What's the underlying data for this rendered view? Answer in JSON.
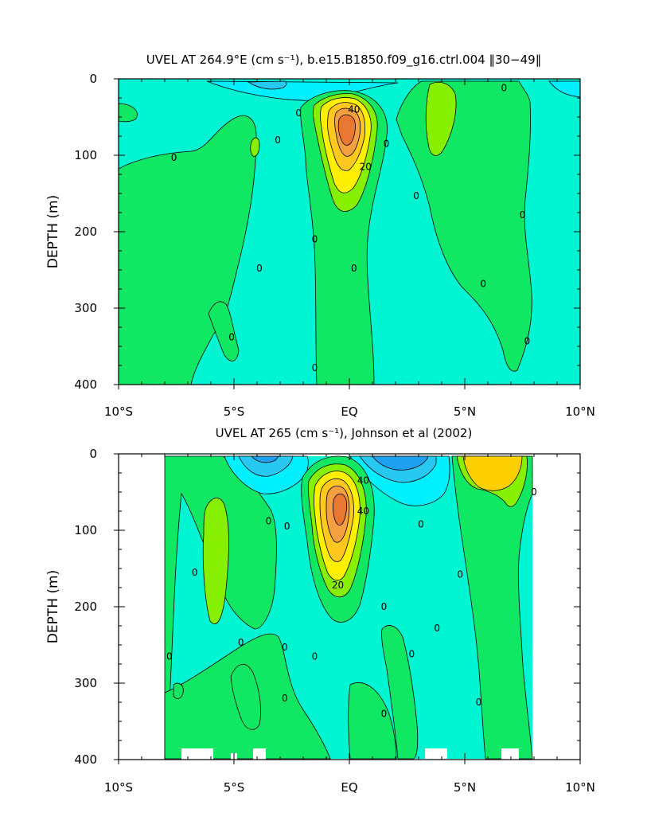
{
  "chart_data": [
    {
      "type": "contour",
      "title": "UVEL AT 264.9°E (cm s⁻¹), b.e15.B1850.f09_g16.ctrl.004 ‖30−49‖",
      "ylabel": "DEPTH (m)",
      "xlabel": "",
      "x_ticks": [
        "10°S",
        "5°S",
        "EQ",
        "5°N",
        "10°N"
      ],
      "x_tick_values": [
        -10,
        -5,
        0,
        5,
        10
      ],
      "y_ticks": [
        "0",
        "100",
        "200",
        "300",
        "400"
      ],
      "y_tick_values": [
        0,
        100,
        200,
        300,
        400
      ],
      "xlim": [
        -10,
        10
      ],
      "ylim": [
        400,
        0
      ],
      "y_reversed": true,
      "data_extent_x": [
        -10,
        10
      ],
      "contour_interval": 10,
      "contour_labels": [
        {
          "text": "40",
          "x": 0.2,
          "y": 40
        },
        {
          "text": "20",
          "x": 0.7,
          "y": 115
        },
        {
          "text": "0",
          "x": -7.6,
          "y": 103
        },
        {
          "text": "0",
          "x": -3.1,
          "y": 80
        },
        {
          "text": "0",
          "x": -2.2,
          "y": 45
        },
        {
          "text": "0",
          "x": 1.6,
          "y": 85
        },
        {
          "text": "0",
          "x": -1.5,
          "y": 210
        },
        {
          "text": "0",
          "x": -3.9,
          "y": 248
        },
        {
          "text": "0",
          "x": 0.2,
          "y": 248
        },
        {
          "text": "0",
          "x": -5.1,
          "y": 338
        },
        {
          "text": "0",
          "x": -1.5,
          "y": 378
        },
        {
          "text": "0",
          "x": 2.9,
          "y": 153
        },
        {
          "text": "0",
          "x": 6.7,
          "y": 12
        },
        {
          "text": "0",
          "x": 7.5,
          "y": 178
        },
        {
          "text": "0",
          "x": 5.8,
          "y": 268
        },
        {
          "text": "0",
          "x": 7.7,
          "y": 343
        }
      ],
      "maximum": {
        "value": 60,
        "x": 0,
        "y": 65
      }
    },
    {
      "type": "contour",
      "title": "UVEL AT 265 (cm s⁻¹), Johnson et al (2002)",
      "ylabel": "DEPTH (m)",
      "xlabel": "",
      "x_ticks": [
        "10°S",
        "5°S",
        "EQ",
        "5°N",
        "10°N"
      ],
      "x_tick_values": [
        -10,
        -5,
        0,
        5,
        10
      ],
      "y_ticks": [
        "0",
        "100",
        "200",
        "300",
        "400"
      ],
      "y_tick_values": [
        0,
        100,
        200,
        300,
        400
      ],
      "xlim": [
        -10,
        10
      ],
      "ylim": [
        400,
        0
      ],
      "y_reversed": true,
      "data_extent_x": [
        -8,
        8
      ],
      "contour_interval": 10,
      "contour_labels": [
        {
          "text": "40",
          "x": 0.6,
          "y": 35
        },
        {
          "text": "40",
          "x": 0.6,
          "y": 75
        },
        {
          "text": "20",
          "x": -0.5,
          "y": 172
        },
        {
          "text": "0",
          "x": -7.8,
          "y": 265
        },
        {
          "text": "0",
          "x": -6.7,
          "y": 155
        },
        {
          "text": "0",
          "x": -3.5,
          "y": 88
        },
        {
          "text": "0",
          "x": -2.7,
          "y": 95
        },
        {
          "text": "0",
          "x": -4.7,
          "y": 247
        },
        {
          "text": "0",
          "x": -2.8,
          "y": 253
        },
        {
          "text": "0",
          "x": -1.5,
          "y": 265
        },
        {
          "text": "0",
          "x": -2.8,
          "y": 320
        },
        {
          "text": "0",
          "x": 1.5,
          "y": 200
        },
        {
          "text": "0",
          "x": 3.1,
          "y": 92
        },
        {
          "text": "0",
          "x": 3.8,
          "y": 228
        },
        {
          "text": "0",
          "x": 2.7,
          "y": 262
        },
        {
          "text": "0",
          "x": 1.5,
          "y": 340
        },
        {
          "text": "0",
          "x": 4.8,
          "y": 158
        },
        {
          "text": "0",
          "x": 5.6,
          "y": 325
        },
        {
          "text": "0",
          "x": 8.0,
          "y": 50
        }
      ],
      "maximum": {
        "value": 60,
        "x": 0,
        "y": 65
      }
    }
  ],
  "palette": {
    "neg_strong": "#1ea0f0",
    "neg_mid": "#27c8f2",
    "neg_weak": "#00f0ff",
    "near_zero": "#00f5d2",
    "pos_10": "#10e864",
    "pos_20": "#86f000",
    "pos_30": "#fff000",
    "pos_40": "#ffc81e",
    "pos_50": "#f5a040",
    "pos_60": "#e87832"
  }
}
